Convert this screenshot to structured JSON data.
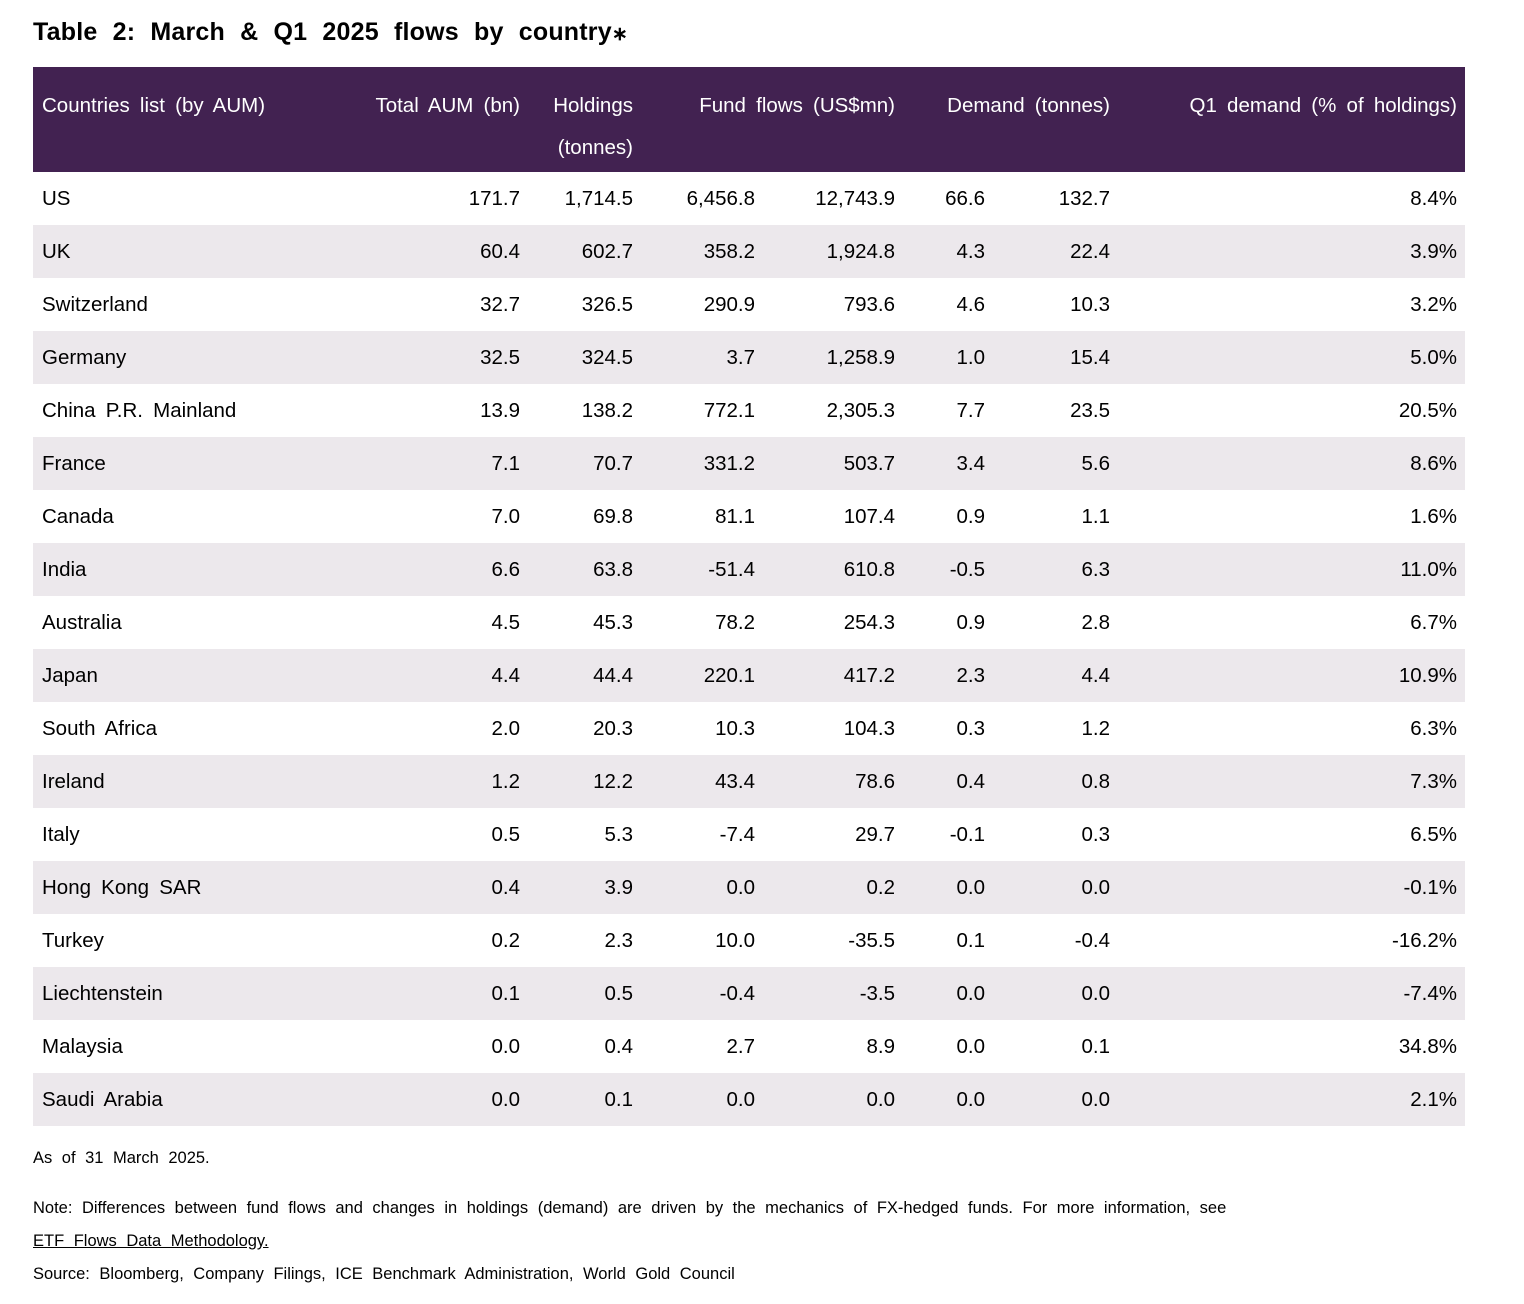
{
  "title": {
    "text": "Table 2: March & Q1 2025 flows by country",
    "asterisk": "∗"
  },
  "colors": {
    "header_bg": "#422251",
    "stripe": "#ECE8EC",
    "text": "#000000"
  },
  "table": {
    "headers": {
      "countries": "Countries list (by AUM)",
      "total_aum": "Total AUM (bn)",
      "holdings_line1": "Holdings",
      "holdings_line2": "(tonnes)",
      "fund_flows": "Fund flows (US$mn)",
      "demand": "Demand (tonnes)",
      "q1_demand": "Q1 demand (% of holdings)"
    },
    "rows": [
      {
        "country": "US",
        "total_aum": "171.7",
        "holdings": "1,714.5",
        "flows_march": "6,456.8",
        "flows_q1": "12,743.9",
        "demand_march": "66.6",
        "demand_q1": "132.7",
        "q1_demand_pct": "8.4%"
      },
      {
        "country": "UK",
        "total_aum": "60.4",
        "holdings": "602.7",
        "flows_march": "358.2",
        "flows_q1": "1,924.8",
        "demand_march": "4.3",
        "demand_q1": "22.4",
        "q1_demand_pct": "3.9%"
      },
      {
        "country": "Switzerland",
        "total_aum": "32.7",
        "holdings": "326.5",
        "flows_march": "290.9",
        "flows_q1": "793.6",
        "demand_march": "4.6",
        "demand_q1": "10.3",
        "q1_demand_pct": "3.2%"
      },
      {
        "country": "Germany",
        "total_aum": "32.5",
        "holdings": "324.5",
        "flows_march": "3.7",
        "flows_q1": "1,258.9",
        "demand_march": "1.0",
        "demand_q1": "15.4",
        "q1_demand_pct": "5.0%"
      },
      {
        "country": "China P.R. Mainland",
        "total_aum": "13.9",
        "holdings": "138.2",
        "flows_march": "772.1",
        "flows_q1": "2,305.3",
        "demand_march": "7.7",
        "demand_q1": "23.5",
        "q1_demand_pct": "20.5%"
      },
      {
        "country": "France",
        "total_aum": "7.1",
        "holdings": "70.7",
        "flows_march": "331.2",
        "flows_q1": "503.7",
        "demand_march": "3.4",
        "demand_q1": "5.6",
        "q1_demand_pct": "8.6%"
      },
      {
        "country": "Canada",
        "total_aum": "7.0",
        "holdings": "69.8",
        "flows_march": "81.1",
        "flows_q1": "107.4",
        "demand_march": "0.9",
        "demand_q1": "1.1",
        "q1_demand_pct": "1.6%"
      },
      {
        "country": "India",
        "total_aum": "6.6",
        "holdings": "63.8",
        "flows_march": "-51.4",
        "flows_q1": "610.8",
        "demand_march": "-0.5",
        "demand_q1": "6.3",
        "q1_demand_pct": "11.0%"
      },
      {
        "country": "Australia",
        "total_aum": "4.5",
        "holdings": "45.3",
        "flows_march": "78.2",
        "flows_q1": "254.3",
        "demand_march": "0.9",
        "demand_q1": "2.8",
        "q1_demand_pct": "6.7%"
      },
      {
        "country": "Japan",
        "total_aum": "4.4",
        "holdings": "44.4",
        "flows_march": "220.1",
        "flows_q1": "417.2",
        "demand_march": "2.3",
        "demand_q1": "4.4",
        "q1_demand_pct": "10.9%"
      },
      {
        "country": "South Africa",
        "total_aum": "2.0",
        "holdings": "20.3",
        "flows_march": "10.3",
        "flows_q1": "104.3",
        "demand_march": "0.3",
        "demand_q1": "1.2",
        "q1_demand_pct": "6.3%"
      },
      {
        "country": "Ireland",
        "total_aum": "1.2",
        "holdings": "12.2",
        "flows_march": "43.4",
        "flows_q1": "78.6",
        "demand_march": "0.4",
        "demand_q1": "0.8",
        "q1_demand_pct": "7.3%"
      },
      {
        "country": "Italy",
        "total_aum": "0.5",
        "holdings": "5.3",
        "flows_march": "-7.4",
        "flows_q1": "29.7",
        "demand_march": "-0.1",
        "demand_q1": "0.3",
        "q1_demand_pct": "6.5%"
      },
      {
        "country": "Hong Kong SAR",
        "total_aum": "0.4",
        "holdings": "3.9",
        "flows_march": "0.0",
        "flows_q1": "0.2",
        "demand_march": "0.0",
        "demand_q1": "0.0",
        "q1_demand_pct": "-0.1%"
      },
      {
        "country": "Turkey",
        "total_aum": "0.2",
        "holdings": "2.3",
        "flows_march": "10.0",
        "flows_q1": "-35.5",
        "demand_march": "0.1",
        "demand_q1": "-0.4",
        "q1_demand_pct": "-16.2%"
      },
      {
        "country": "Liechtenstein",
        "total_aum": "0.1",
        "holdings": "0.5",
        "flows_march": "-0.4",
        "flows_q1": "-3.5",
        "demand_march": "0.0",
        "demand_q1": "0.0",
        "q1_demand_pct": "-7.4%"
      },
      {
        "country": "Malaysia",
        "total_aum": "0.0",
        "holdings": "0.4",
        "flows_march": "2.7",
        "flows_q1": "8.9",
        "demand_march": "0.0",
        "demand_q1": "0.1",
        "q1_demand_pct": "34.8%"
      },
      {
        "country": "Saudi Arabia",
        "total_aum": "0.0",
        "holdings": "0.1",
        "flows_march": "0.0",
        "flows_q1": "0.0",
        "demand_march": "0.0",
        "demand_q1": "0.0",
        "q1_demand_pct": "2.1%"
      }
    ]
  },
  "footer": {
    "as_of": "As of 31 March 2025.",
    "note": "Note: Differences between fund flows and changes in holdings (demand) are driven by the mechanics of FX-hedged funds. For more information, see",
    "link": "ETF Flows Data Methodology.",
    "source": "Source: Bloomberg, Company Filings, ICE Benchmark Administration, World Gold Council"
  },
  "chart_data": {
    "type": "table",
    "title": "Table 2: March & Q1 2025 flows by country*",
    "columns": [
      "Countries list (by AUM)",
      "Total AUM (bn)",
      "Holdings (tonnes)",
      "Fund flows (US$mn) March",
      "Fund flows (US$mn) Q1",
      "Demand (tonnes) March",
      "Demand (tonnes) Q1",
      "Q1 demand (% of holdings)"
    ],
    "rows": [
      [
        "US",
        171.7,
        1714.5,
        6456.8,
        12743.9,
        66.6,
        132.7,
        "8.4%"
      ],
      [
        "UK",
        60.4,
        602.7,
        358.2,
        1924.8,
        4.3,
        22.4,
        "3.9%"
      ],
      [
        "Switzerland",
        32.7,
        326.5,
        290.9,
        793.6,
        4.6,
        10.3,
        "3.2%"
      ],
      [
        "Germany",
        32.5,
        324.5,
        3.7,
        1258.9,
        1.0,
        15.4,
        "5.0%"
      ],
      [
        "China P.R. Mainland",
        13.9,
        138.2,
        772.1,
        2305.3,
        7.7,
        23.5,
        "20.5%"
      ],
      [
        "France",
        7.1,
        70.7,
        331.2,
        503.7,
        3.4,
        5.6,
        "8.6%"
      ],
      [
        "Canada",
        7.0,
        69.8,
        81.1,
        107.4,
        0.9,
        1.1,
        "1.6%"
      ],
      [
        "India",
        6.6,
        63.8,
        -51.4,
        610.8,
        -0.5,
        6.3,
        "11.0%"
      ],
      [
        "Australia",
        4.5,
        45.3,
        78.2,
        254.3,
        0.9,
        2.8,
        "6.7%"
      ],
      [
        "Japan",
        4.4,
        44.4,
        220.1,
        417.2,
        2.3,
        4.4,
        "10.9%"
      ],
      [
        "South Africa",
        2.0,
        20.3,
        10.3,
        104.3,
        0.3,
        1.2,
        "6.3%"
      ],
      [
        "Ireland",
        1.2,
        12.2,
        43.4,
        78.6,
        0.4,
        0.8,
        "7.3%"
      ],
      [
        "Italy",
        0.5,
        5.3,
        -7.4,
        29.7,
        -0.1,
        0.3,
        "6.5%"
      ],
      [
        "Hong Kong SAR",
        0.4,
        3.9,
        0.0,
        0.2,
        0.0,
        0.0,
        "-0.1%"
      ],
      [
        "Turkey",
        0.2,
        2.3,
        10.0,
        -35.5,
        0.1,
        -0.4,
        "-16.2%"
      ],
      [
        "Liechtenstein",
        0.1,
        0.5,
        -0.4,
        -3.5,
        0.0,
        0.0,
        "-7.4%"
      ],
      [
        "Malaysia",
        0.0,
        0.4,
        2.7,
        8.9,
        0.0,
        0.1,
        "34.8%"
      ],
      [
        "Saudi Arabia",
        0.0,
        0.1,
        0.0,
        0.0,
        0.0,
        0.0,
        "2.1%"
      ]
    ]
  }
}
